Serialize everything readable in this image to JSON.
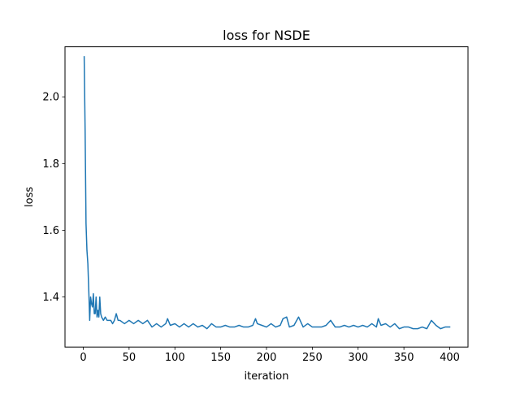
{
  "chart_data": {
    "type": "line",
    "title": "loss for NSDE",
    "xlabel": "iteration",
    "ylabel": "loss",
    "xlim": [
      -19.95,
      419.95
    ],
    "ylim": [
      1.25,
      2.15
    ],
    "xticks": [
      0,
      50,
      100,
      150,
      200,
      250,
      300,
      350,
      400
    ],
    "yticks": [
      1.4,
      1.6,
      1.8,
      2.0
    ],
    "ytick_labels": [
      "1.4",
      "1.6",
      "1.8",
      "2.0"
    ],
    "grid": false,
    "legend": "none",
    "colors": {
      "line": "#1f77b4",
      "axes": "#000000",
      "background": "#ffffff"
    },
    "series": [
      {
        "x": [
          1,
          2,
          3,
          4,
          5,
          6,
          7,
          8,
          9,
          10,
          11,
          12,
          13,
          14,
          15,
          16,
          17,
          18,
          19,
          20,
          22,
          24,
          26,
          28,
          30,
          32,
          34,
          36,
          38,
          40,
          45,
          50,
          55,
          60,
          65,
          70,
          75,
          80,
          85,
          90,
          92,
          95,
          100,
          105,
          110,
          115,
          120,
          125,
          130,
          135,
          140,
          145,
          150,
          155,
          160,
          165,
          170,
          175,
          180,
          185,
          188,
          190,
          195,
          200,
          205,
          210,
          215,
          218,
          222,
          225,
          230,
          235,
          240,
          245,
          250,
          255,
          260,
          265,
          270,
          275,
          280,
          285,
          290,
          295,
          300,
          305,
          310,
          315,
          320,
          322,
          325,
          330,
          335,
          340,
          345,
          350,
          355,
          360,
          365,
          370,
          375,
          378,
          380,
          385,
          390,
          395,
          400
        ],
        "y": [
          2.12,
          1.9,
          1.62,
          1.54,
          1.5,
          1.42,
          1.33,
          1.4,
          1.38,
          1.37,
          1.41,
          1.35,
          1.35,
          1.4,
          1.34,
          1.36,
          1.34,
          1.4,
          1.35,
          1.34,
          1.33,
          1.34,
          1.33,
          1.33,
          1.33,
          1.32,
          1.33,
          1.35,
          1.33,
          1.33,
          1.32,
          1.33,
          1.32,
          1.33,
          1.32,
          1.33,
          1.31,
          1.32,
          1.31,
          1.32,
          1.335,
          1.315,
          1.32,
          1.31,
          1.32,
          1.31,
          1.32,
          1.31,
          1.315,
          1.305,
          1.32,
          1.31,
          1.31,
          1.315,
          1.31,
          1.31,
          1.315,
          1.31,
          1.31,
          1.315,
          1.335,
          1.32,
          1.315,
          1.31,
          1.32,
          1.31,
          1.315,
          1.335,
          1.34,
          1.31,
          1.315,
          1.34,
          1.31,
          1.32,
          1.31,
          1.31,
          1.31,
          1.315,
          1.33,
          1.31,
          1.31,
          1.315,
          1.31,
          1.315,
          1.31,
          1.315,
          1.31,
          1.32,
          1.31,
          1.335,
          1.315,
          1.32,
          1.31,
          1.32,
          1.305,
          1.31,
          1.31,
          1.305,
          1.305,
          1.31,
          1.305,
          1.32,
          1.33,
          1.315,
          1.305,
          1.31,
          1.31
        ]
      }
    ]
  }
}
